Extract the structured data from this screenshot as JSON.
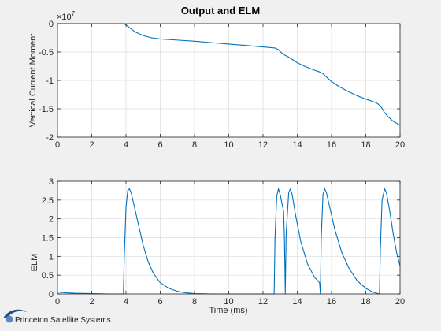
{
  "figure": {
    "logo_text": "Princeton Satellite Systems",
    "colors": {
      "line": "#0072bd",
      "grid": "#dcdcdc",
      "axis": "#262626",
      "background": "#f0f0f0",
      "plot": "#ffffff",
      "logo": "#1f4e8c"
    }
  },
  "chart_data": [
    {
      "type": "line",
      "title": "Output and ELM",
      "xlabel": "",
      "ylabel": "Vertical Current Moment",
      "exponent_label": "×10",
      "exponent_power": "7",
      "xlim": [
        0,
        20
      ],
      "ylim": [
        -2,
        0
      ],
      "grid": true,
      "xticks": [
        "0",
        "2",
        "4",
        "6",
        "8",
        "10",
        "12",
        "14",
        "16",
        "18",
        "20"
      ],
      "yticks": [
        "0",
        "-0.5",
        "-1",
        "-1.5",
        "-2"
      ],
      "ytick_values": [
        0,
        -0.5,
        -1,
        -1.5,
        -2
      ],
      "x": [
        0,
        3.85,
        4.0,
        4.2,
        4.5,
        5.0,
        5.5,
        6.0,
        7,
        8,
        9,
        10,
        11,
        12,
        12.7,
        12.9,
        13.1,
        13.3,
        13.5,
        13.7,
        14.0,
        14.5,
        15.0,
        15.3,
        15.5,
        15.7,
        16.0,
        16.5,
        17.0,
        17.5,
        18.0,
        18.5,
        18.7,
        18.9,
        19.1,
        19.3,
        19.6,
        20.0
      ],
      "y": [
        0,
        0,
        -0.02,
        -0.07,
        -0.14,
        -0.21,
        -0.25,
        -0.27,
        -0.29,
        -0.31,
        -0.335,
        -0.36,
        -0.385,
        -0.41,
        -0.43,
        -0.46,
        -0.52,
        -0.56,
        -0.59,
        -0.63,
        -0.69,
        -0.76,
        -0.82,
        -0.85,
        -0.88,
        -0.94,
        -1.02,
        -1.12,
        -1.2,
        -1.27,
        -1.33,
        -1.38,
        -1.41,
        -1.47,
        -1.57,
        -1.64,
        -1.72,
        -1.79
      ],
      "series": [
        {
          "values_ref": "y"
        }
      ]
    },
    {
      "type": "line",
      "title": "",
      "xlabel": "Time (ms)",
      "ylabel": "ELM",
      "xlim": [
        0,
        20
      ],
      "ylim": [
        0,
        3
      ],
      "grid": true,
      "xticks": [
        "0",
        "2",
        "4",
        "6",
        "8",
        "10",
        "12",
        "14",
        "16",
        "18",
        "20"
      ],
      "yticks": [
        "0",
        "0.5",
        "1",
        "1.5",
        "2",
        "2.5",
        "3"
      ],
      "ytick_values": [
        0,
        0.5,
        1,
        1.5,
        2,
        2.5,
        3
      ],
      "x": [
        0,
        0.5,
        1,
        2,
        3,
        3.85,
        3.9,
        4.0,
        4.1,
        4.2,
        4.3,
        4.5,
        4.8,
        5.0,
        5.3,
        5.6,
        6.0,
        6.5,
        7,
        7.5,
        8,
        9,
        10,
        12,
        12.65,
        12.7,
        12.8,
        12.9,
        13.0,
        13.2,
        13.25,
        13.3,
        13.35,
        13.5,
        13.6,
        13.7,
        13.9,
        14.2,
        14.6,
        15.0,
        15.3,
        15.35,
        15.4,
        15.5,
        15.6,
        15.7,
        15.9,
        16.2,
        16.6,
        17.0,
        17.5,
        18.0,
        18.4,
        18.8,
        18.85,
        18.95,
        19.1,
        19.2,
        19.4,
        19.6,
        19.8,
        20.0
      ],
      "y": [
        0.05,
        0.03,
        0.02,
        0.01,
        0.0,
        0.0,
        1.0,
        2.3,
        2.75,
        2.8,
        2.7,
        2.3,
        1.7,
        1.3,
        0.85,
        0.55,
        0.3,
        0.15,
        0.07,
        0.03,
        0.01,
        0.0,
        0.0,
        0.0,
        0.0,
        1.5,
        2.6,
        2.8,
        2.65,
        2.2,
        1.5,
        0.0,
        1.6,
        2.7,
        2.8,
        2.65,
        2.1,
        1.4,
        0.8,
        0.45,
        0.3,
        0.0,
        1.5,
        2.65,
        2.8,
        2.7,
        2.3,
        1.7,
        1.1,
        0.7,
        0.35,
        0.15,
        0.05,
        0.0,
        1.2,
        2.5,
        2.8,
        2.7,
        2.2,
        1.6,
        1.1,
        0.75
      ],
      "series": [
        {
          "values_ref": "y"
        }
      ]
    }
  ]
}
